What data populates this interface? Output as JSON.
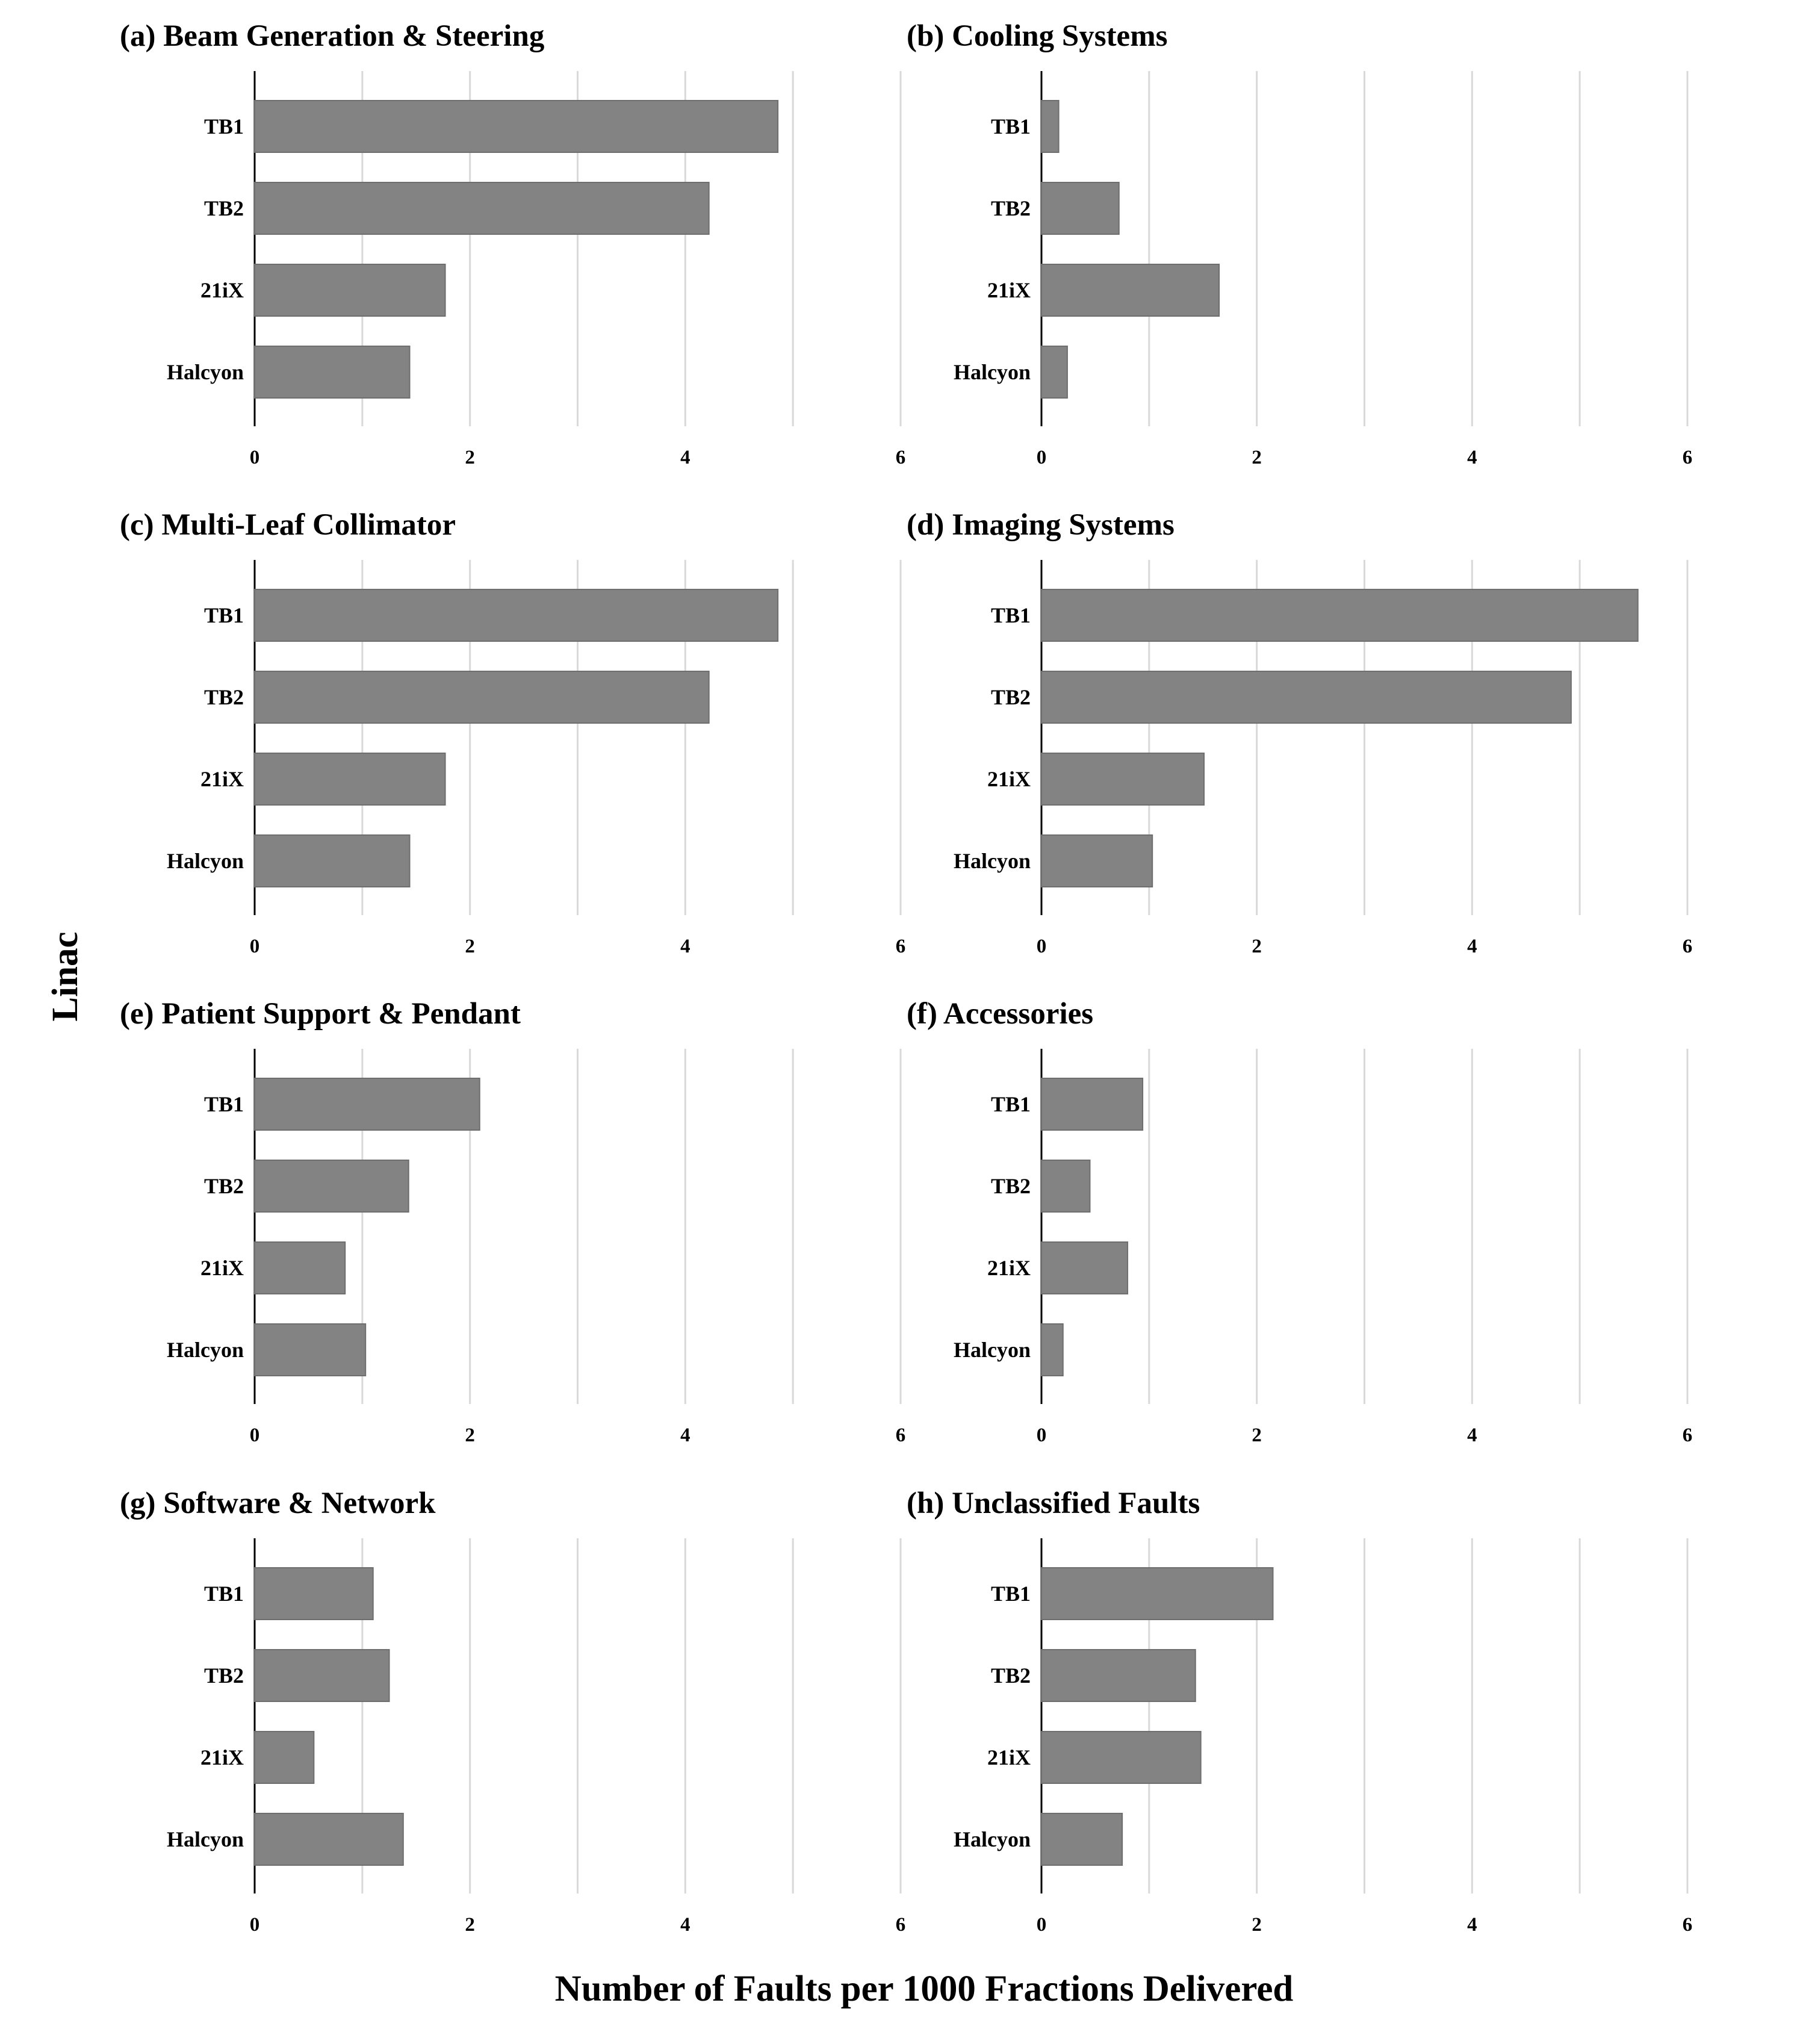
{
  "figure": {
    "ylabel": "Linac",
    "xlabel": "Number of Faults per 1000 Fractions Delivered"
  },
  "chart_data": [
    {
      "type": "bar",
      "orientation": "horizontal",
      "title": "(a) Beam Generation & Steering",
      "categories": [
        "TB1",
        "TB2",
        "21iX",
        "Halcyon"
      ],
      "values": [
        4.86,
        4.22,
        1.77,
        1.44
      ],
      "xlim": [
        0,
        6
      ],
      "xticks": [
        0,
        2,
        4,
        6
      ],
      "grid": true,
      "bar_color": "#838383"
    },
    {
      "type": "bar",
      "orientation": "horizontal",
      "title": "(b) Cooling Systems",
      "categories": [
        "TB1",
        "TB2",
        "21iX",
        "Halcyon"
      ],
      "values": [
        0.16,
        0.72,
        1.65,
        0.24
      ],
      "xlim": [
        0,
        6
      ],
      "xticks": [
        0,
        2,
        4,
        6
      ],
      "grid": true,
      "bar_color": "#838383"
    },
    {
      "type": "bar",
      "orientation": "horizontal",
      "title": "(c) Multi-Leaf Collimator",
      "categories": [
        "TB1",
        "TB2",
        "21iX",
        "Halcyon"
      ],
      "values": [
        4.86,
        4.22,
        1.77,
        1.44
      ],
      "xlim": [
        0,
        6
      ],
      "xticks": [
        0,
        2,
        4,
        6
      ],
      "grid": true,
      "bar_color": "#838383"
    },
    {
      "type": "bar",
      "orientation": "horizontal",
      "title": "(d) Imaging Systems",
      "categories": [
        "TB1",
        "TB2",
        "21iX",
        "Halcyon"
      ],
      "values": [
        5.54,
        4.92,
        1.51,
        1.03
      ],
      "xlim": [
        0,
        6
      ],
      "xticks": [
        0,
        2,
        4,
        6
      ],
      "grid": true,
      "bar_color": "#838383"
    },
    {
      "type": "bar",
      "orientation": "horizontal",
      "title": "(e) Patient Support & Pendant",
      "categories": [
        "TB1",
        "TB2",
        "21iX",
        "Halcyon"
      ],
      "values": [
        2.09,
        1.43,
        0.84,
        1.03
      ],
      "xlim": [
        0,
        6
      ],
      "xticks": [
        0,
        2,
        4,
        6
      ],
      "grid": true,
      "bar_color": "#838383"
    },
    {
      "type": "bar",
      "orientation": "horizontal",
      "title": "(f) Accessories",
      "categories": [
        "TB1",
        "TB2",
        "21iX",
        "Halcyon"
      ],
      "values": [
        0.94,
        0.45,
        0.8,
        0.2
      ],
      "xlim": [
        0,
        6
      ],
      "xticks": [
        0,
        2,
        4,
        6
      ],
      "grid": true,
      "bar_color": "#838383"
    },
    {
      "type": "bar",
      "orientation": "horizontal",
      "title": "(g) Software & Network",
      "categories": [
        "TB1",
        "TB2",
        "21iX",
        "Halcyon"
      ],
      "values": [
        1.1,
        1.25,
        0.55,
        1.38
      ],
      "xlim": [
        0,
        6
      ],
      "xticks": [
        0,
        2,
        4,
        6
      ],
      "grid": true,
      "bar_color": "#838383"
    },
    {
      "type": "bar",
      "orientation": "horizontal",
      "title": "(h) Unclassified Faults",
      "categories": [
        "TB1",
        "TB2",
        "21iX",
        "Halcyon"
      ],
      "values": [
        2.15,
        1.43,
        1.48,
        0.75
      ],
      "xlim": [
        0,
        6
      ],
      "xticks": [
        0,
        2,
        4,
        6
      ],
      "grid": true,
      "bar_color": "#838383"
    }
  ]
}
